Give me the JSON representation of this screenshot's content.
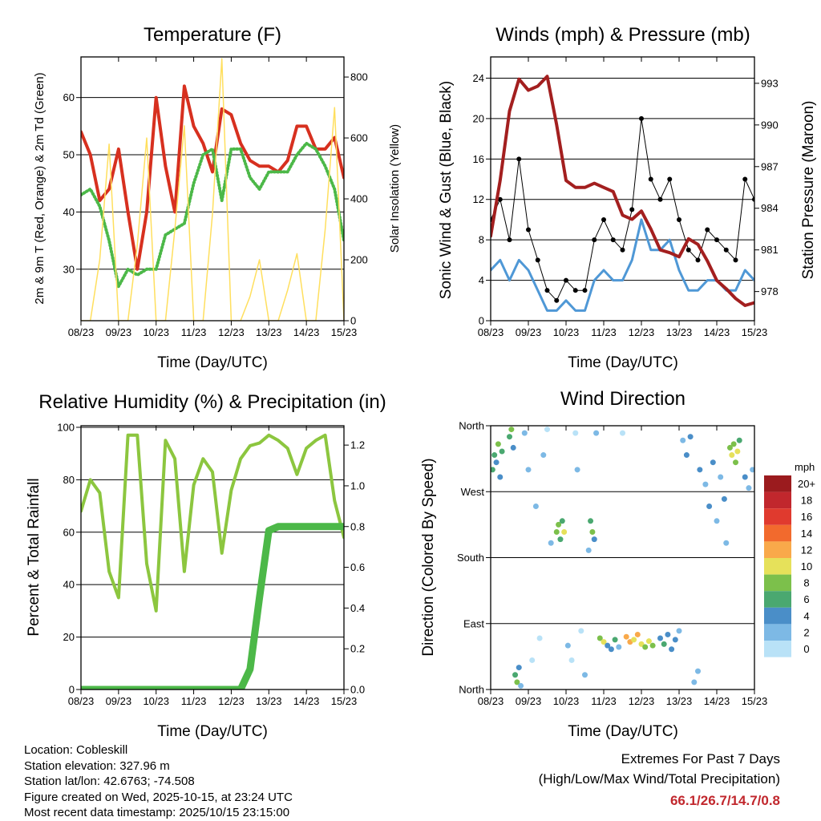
{
  "footer": {
    "location": "Location: Cobleskill",
    "elevation": "Station elevation: 327.96 m",
    "latlon": "Station lat/lon: 42.6763; -74.508",
    "created": "Figure created on Wed, 2025-10-15, at 23:24 UTC",
    "recent": "Most recent data timestamp: 2025/10/15 23:15:00",
    "extremes_title": "Extremes For Past 7 Days",
    "extremes_sub": "(High/Low/Max Wind/Total Precipitation)",
    "extremes_values": "66.1/26.7/14.7/0.8"
  },
  "chart_data": [
    {
      "id": "temperature",
      "type": "line",
      "title": "Temperature (F)",
      "xlabel": "Time (Day/UTC)",
      "ylabel": "2m & 9m T (Red, Orange) & 2m Td (Green)",
      "ylabel_right": "Solar Insolation (Yellow)",
      "x_ticks": [
        "08/23",
        "09/23",
        "10/23",
        "11/23",
        "12/23",
        "13/23",
        "14/23",
        "15/23"
      ],
      "x_step_days": 0.25,
      "ylim": [
        21,
        67.1
      ],
      "y_ticks": [
        30,
        40,
        50,
        60
      ],
      "ylim_right": [
        0,
        866
      ],
      "y_ticks_right": [
        0,
        200,
        400,
        600,
        800
      ],
      "grid": true,
      "series": [
        {
          "name": "2m/9m Temperature",
          "axis": "left",
          "color": "#d7301f",
          "values": [
            54,
            50,
            42,
            44,
            51,
            40,
            30,
            40,
            60,
            48,
            40,
            62,
            55,
            52,
            47,
            58,
            57,
            52,
            49,
            48,
            48,
            47,
            49,
            55,
            55,
            51,
            51,
            53,
            46
          ]
        },
        {
          "name": "2m Dewpoint",
          "axis": "left",
          "color": "#4cb848",
          "values": [
            43,
            44,
            41,
            35,
            27,
            30,
            29,
            30,
            30,
            36,
            37,
            38,
            45,
            50,
            51,
            42,
            51,
            51,
            46,
            44,
            47,
            47,
            47,
            50,
            52,
            51,
            48,
            44,
            35
          ]
        },
        {
          "name": "Solar Insolation",
          "axis": "right",
          "color": "#ffdf5e",
          "values": [
            0,
            0,
            200,
            580,
            0,
            0,
            250,
            600,
            0,
            0,
            300,
            640,
            0,
            0,
            350,
            860,
            0,
            0,
            80,
            200,
            0,
            0,
            100,
            220,
            0,
            0,
            300,
            700,
            0
          ]
        }
      ]
    },
    {
      "id": "winds",
      "type": "line",
      "title": "Winds (mph) & Pressure (mb)",
      "xlabel": "Time (Day/UTC)",
      "ylabel": "Sonic Wind & Gust (Blue, Black)",
      "ylabel_right": "Station Pressure (Maroon)",
      "x_ticks": [
        "08/23",
        "09/23",
        "10/23",
        "11/23",
        "12/23",
        "13/23",
        "14/23",
        "15/23"
      ],
      "x_step_days": 0.25,
      "ylim": [
        0,
        26.1
      ],
      "y_ticks": [
        0,
        4,
        8,
        12,
        16,
        20,
        24
      ],
      "ylim_right": [
        975.9,
        994.9
      ],
      "y_ticks_right": [
        978,
        981,
        984,
        987,
        990,
        993
      ],
      "grid": true,
      "series": [
        {
          "name": "Sonic Wind",
          "axis": "left",
          "color": "#4f98d6",
          "values": [
            5,
            6,
            4,
            6,
            5,
            3,
            1,
            1,
            2,
            1,
            1,
            4,
            5,
            4,
            4,
            6,
            10,
            7,
            7,
            8,
            5,
            3,
            3,
            4,
            4,
            3,
            3,
            5,
            4
          ]
        },
        {
          "name": "Gust",
          "axis": "left",
          "color": "#000000",
          "values": [
            10,
            12,
            8,
            16,
            9,
            6,
            3,
            2,
            4,
            3,
            3,
            8,
            10,
            8,
            7,
            11,
            20,
            14,
            12,
            14,
            10,
            7,
            6,
            9,
            8,
            7,
            6,
            14,
            12
          ]
        },
        {
          "name": "Station Pressure",
          "axis": "right",
          "color": "#a31f1f",
          "values": [
            982,
            986,
            991,
            993.3,
            992.5,
            992.8,
            993.5,
            990,
            986,
            985.5,
            985.5,
            985.8,
            985.5,
            985.2,
            983.5,
            983.2,
            983.8,
            982.5,
            981,
            980.8,
            980.5,
            981.8,
            981.4,
            980.2,
            978.8,
            978.2,
            977.5,
            977,
            977.2
          ]
        }
      ]
    },
    {
      "id": "humidity",
      "type": "line",
      "title": "Relative Humidity (%) & Precipitation (in)",
      "xlabel": "Time (Day/UTC)",
      "ylabel": "Percent & Total Rainfall",
      "x_ticks": [
        "08/23",
        "09/23",
        "10/23",
        "11/23",
        "12/23",
        "13/23",
        "14/23",
        "15/23"
      ],
      "x_step_days": 0.25,
      "ylim": [
        0,
        100.6
      ],
      "y_ticks": [
        0,
        20,
        40,
        60,
        80,
        100
      ],
      "ylim_right": [
        0,
        1.295
      ],
      "y_ticks_right": [
        "0.0",
        "0.2",
        "0.4",
        "0.6",
        "0.8",
        "1.0",
        "1.2"
      ],
      "grid": true,
      "series": [
        {
          "name": "Relative Humidity",
          "axis": "left",
          "color": "#8cc63f",
          "values": [
            68,
            80,
            75,
            45,
            35,
            97,
            97,
            48,
            30,
            95,
            88,
            45,
            78,
            88,
            83,
            52,
            76,
            88,
            93,
            94,
            97,
            95,
            92,
            82,
            92,
            95,
            97,
            72,
            58
          ]
        },
        {
          "name": "Total Precipitation",
          "axis": "right",
          "color": "#4cb848",
          "values": [
            0,
            0,
            0,
            0,
            0,
            0,
            0,
            0,
            0,
            0,
            0,
            0,
            0,
            0,
            0,
            0,
            0,
            0,
            0.1,
            0.45,
            0.78,
            0.8,
            0.8,
            0.8,
            0.8,
            0.8,
            0.8,
            0.8,
            0.8
          ]
        }
      ]
    },
    {
      "id": "wind_direction",
      "type": "scatter",
      "title": "Wind Direction",
      "xlabel": "Time (Day/UTC)",
      "ylabel": "Direction (Colored By Speed)",
      "x_ticks": [
        "08/23",
        "09/23",
        "10/23",
        "11/23",
        "12/23",
        "13/23",
        "14/23",
        "15/23"
      ],
      "ylim": [
        0,
        360
      ],
      "y_ticks": [
        0,
        90,
        180,
        270,
        360
      ],
      "y_tick_labels": [
        "North",
        "East",
        "South",
        "West",
        "North"
      ],
      "grid": true,
      "legend": {
        "title": "mph",
        "placement": "right",
        "labels": [
          "20+",
          "18",
          "16",
          "14",
          "12",
          "10",
          "8",
          "6",
          "4",
          "2",
          "0"
        ],
        "colors": [
          "#9b1b1e",
          "#c1272d",
          "#e03a2e",
          "#f26a2d",
          "#f9a94a",
          "#e6e15a",
          "#7cc04b",
          "#4aa870",
          "#4a8ec8",
          "#7db9e5",
          "#b9e2f7"
        ]
      },
      "points": [
        [
          0.05,
          300,
          6
        ],
        [
          0.1,
          320,
          7
        ],
        [
          0.15,
          310,
          5
        ],
        [
          0.2,
          335,
          8
        ],
        [
          0.25,
          290,
          4
        ],
        [
          0.3,
          325,
          6
        ],
        [
          0.5,
          345,
          7
        ],
        [
          0.55,
          355,
          9
        ],
        [
          0.6,
          330,
          5
        ],
        [
          0.65,
          20,
          6
        ],
        [
          0.7,
          10,
          8
        ],
        [
          0.75,
          30,
          5
        ],
        [
          0.8,
          5,
          3
        ],
        [
          0.9,
          350,
          3
        ],
        [
          1.0,
          300,
          2
        ],
        [
          1.1,
          40,
          1
        ],
        [
          1.2,
          250,
          2
        ],
        [
          1.3,
          70,
          1
        ],
        [
          1.4,
          320,
          2
        ],
        [
          1.5,
          355,
          1
        ],
        [
          1.6,
          200,
          3
        ],
        [
          1.75,
          215,
          8
        ],
        [
          1.8,
          225,
          9
        ],
        [
          1.85,
          205,
          7
        ],
        [
          1.9,
          230,
          6
        ],
        [
          1.95,
          215,
          10
        ],
        [
          2.05,
          60,
          2
        ],
        [
          2.15,
          40,
          1
        ],
        [
          2.25,
          350,
          1
        ],
        [
          2.3,
          300,
          2
        ],
        [
          2.4,
          80,
          1
        ],
        [
          2.5,
          20,
          3
        ],
        [
          2.6,
          190,
          3
        ],
        [
          2.65,
          230,
          7
        ],
        [
          2.7,
          215,
          9
        ],
        [
          2.75,
          205,
          5
        ],
        [
          2.8,
          350,
          2
        ],
        [
          2.9,
          70,
          8
        ],
        [
          3.0,
          65,
          10
        ],
        [
          3.1,
          60,
          5
        ],
        [
          3.2,
          55,
          4
        ],
        [
          3.3,
          68,
          6
        ],
        [
          3.4,
          58,
          3
        ],
        [
          3.5,
          350,
          1
        ],
        [
          3.6,
          72,
          12
        ],
        [
          3.7,
          65,
          13
        ],
        [
          3.8,
          68,
          11
        ],
        [
          3.9,
          75,
          12
        ],
        [
          4.0,
          62,
          10
        ],
        [
          4.1,
          58,
          9
        ],
        [
          4.2,
          66,
          11
        ],
        [
          4.3,
          60,
          8
        ],
        [
          4.5,
          70,
          5
        ],
        [
          4.6,
          62,
          6
        ],
        [
          4.7,
          75,
          4
        ],
        [
          4.8,
          55,
          5
        ],
        [
          4.9,
          68,
          4
        ],
        [
          5.0,
          80,
          3
        ],
        [
          5.1,
          340,
          3
        ],
        [
          5.2,
          320,
          5
        ],
        [
          5.3,
          345,
          4
        ],
        [
          5.4,
          10,
          3
        ],
        [
          5.5,
          25,
          2
        ],
        [
          5.55,
          300,
          4
        ],
        [
          5.7,
          280,
          3
        ],
        [
          5.8,
          250,
          4
        ],
        [
          5.9,
          310,
          5
        ],
        [
          6.0,
          230,
          3
        ],
        [
          6.1,
          290,
          2
        ],
        [
          6.2,
          260,
          4
        ],
        [
          6.25,
          200,
          2
        ],
        [
          6.35,
          330,
          9
        ],
        [
          6.4,
          320,
          10
        ],
        [
          6.45,
          335,
          8
        ],
        [
          6.5,
          310,
          9
        ],
        [
          6.55,
          325,
          11
        ],
        [
          6.6,
          340,
          6
        ],
        [
          6.75,
          290,
          4
        ],
        [
          6.85,
          275,
          3
        ],
        [
          6.95,
          300,
          2
        ]
      ]
    }
  ]
}
